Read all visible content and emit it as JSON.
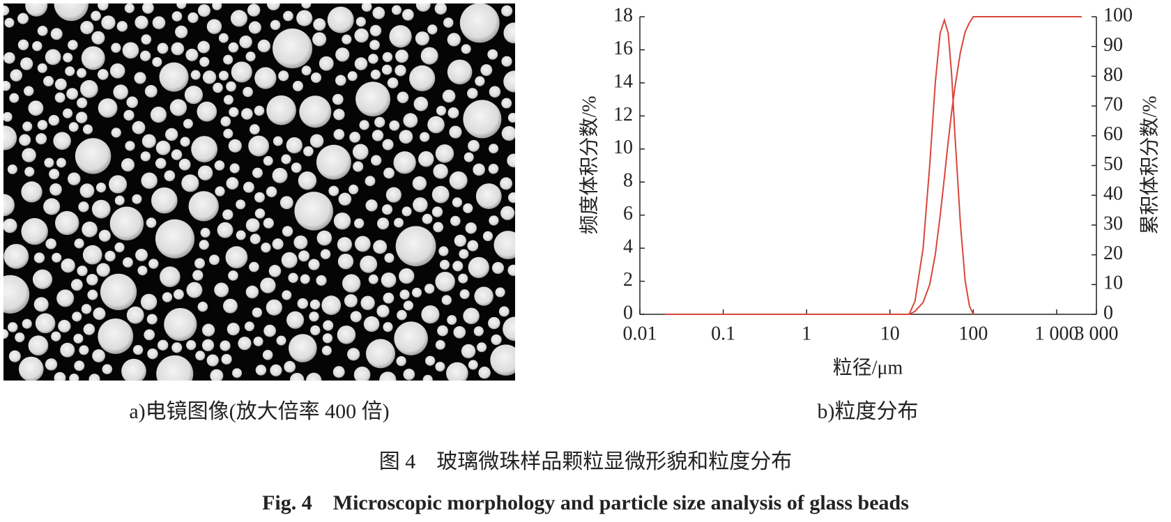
{
  "figure": {
    "panel_a_caption": "a)电镜图像(放大倍率 400 倍)",
    "panel_b_caption": "b)粒度分布",
    "caption_cn": "图 4　玻璃微珠样品颗粒显微形貌和粒度分布",
    "caption_en": "Fig. 4　Microscopic morphology and particle size analysis of glass beads"
  },
  "chart_data": {
    "type": "line",
    "xlabel": "粒径/μm",
    "ylabel": "频度体积分数/%",
    "y2label": "累积体积分数/%",
    "log_x": true,
    "xlim": [
      0.01,
      3000
    ],
    "xticks": [
      0.01,
      0.1,
      1,
      10,
      100,
      {
        "value": 1000,
        "label": "1 000"
      },
      {
        "value": 3000,
        "label": "3 000"
      }
    ],
    "ylim": [
      0,
      18
    ],
    "yticks": [
      0,
      2,
      4,
      6,
      8,
      10,
      12,
      14,
      16,
      18
    ],
    "y2lim": [
      0,
      100
    ],
    "y2ticks": [
      0,
      10,
      20,
      30,
      40,
      50,
      60,
      70,
      80,
      90,
      100
    ],
    "series": [
      {
        "color": "#d9453a",
        "x": [
          0.02,
          1,
          10,
          17,
          20,
          25,
          30,
          35,
          40,
          45,
          50,
          55,
          60,
          70,
          80,
          90,
          100
        ],
        "values": [
          0,
          0,
          0,
          0,
          0.8,
          4,
          9,
          14,
          17,
          17.8,
          17,
          14.5,
          11,
          5.5,
          2,
          0.5,
          0
        ]
      },
      {
        "color": "#d9453a",
        "axis": "y2",
        "x": [
          0.02,
          1,
          10,
          17,
          20,
          25,
          30,
          35,
          40,
          45,
          50,
          55,
          60,
          70,
          80,
          90,
          100,
          1000,
          2000
        ],
        "values": [
          0,
          0,
          0,
          0,
          1,
          4,
          10,
          20,
          33,
          46,
          58,
          68,
          76,
          88,
          95,
          98,
          100,
          100,
          100
        ]
      }
    ]
  }
}
